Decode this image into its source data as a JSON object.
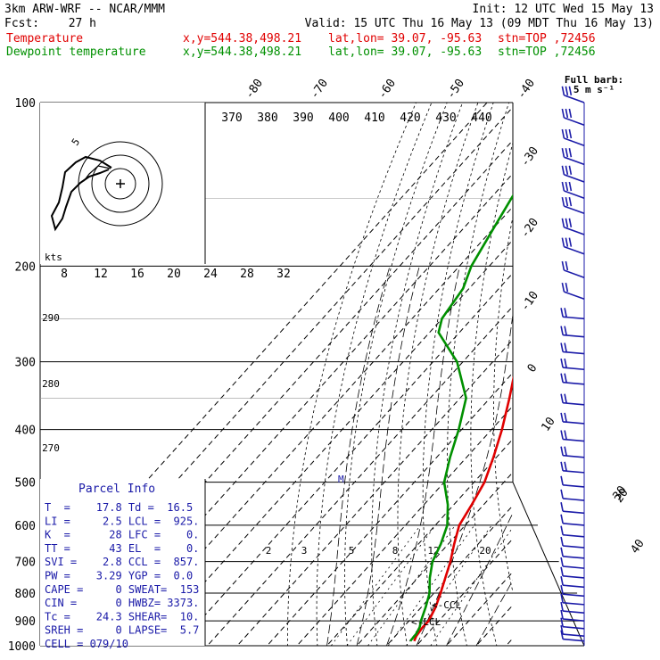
{
  "header": {
    "model": "3km ARW-WRF -- NCAR/MMM",
    "init": "Init: 12 UTC Wed 15 May 13",
    "fcst_label": "Fcst:",
    "fcst_value": "27 h",
    "valid": "Valid: 15 UTC Thu 16 May 13 (09 MDT Thu 16 May 13)"
  },
  "legend": [
    {
      "name": "Temperature",
      "color": "#e00000",
      "xy": "x,y=544.38,498.21",
      "latlon": "lat,lon= 39.07, -95.63",
      "stn": "stn=TOP ,72456"
    },
    {
      "name": "Dewpoint temperature",
      "color": "#009000",
      "xy": "x,y=544.38,498.21",
      "latlon": "lat,lon= 39.07, -95.63",
      "stn": "stn=TOP ,72456"
    }
  ],
  "barb_legend": {
    "line1": "Full barb:",
    "line2": "5 m s⁻¹"
  },
  "hodograph": {
    "units": "kts",
    "ring_label": "5"
  },
  "parcel_info": {
    "title": "Parcel Info",
    "rows": [
      "T  =    17.8 Td =  16.5",
      "LI =     2.5 LCL =  925.",
      "K  =      28 LFC =    0.",
      "TT =      43 EL  =    0.",
      "SVI =    2.8 CCL =  857.",
      "PW =    3.29 YGP =  0.0",
      "CAPE =     0 SWEAT=  153",
      "CIN =      0 HWBZ= 3373.",
      "Tc =    24.3 SHEAR=  10.",
      "SREH =     0 LAPSE=  5.7",
      "CELL = 079/10"
    ]
  },
  "chart_data": {
    "type": "line",
    "subtype": "skew-T log-P",
    "pressure_levels": [
      "100",
      "200",
      "300",
      "400",
      "500",
      "600",
      "700",
      "800",
      "900",
      "1000"
    ],
    "pressure_values": [
      100,
      200,
      300,
      400,
      500,
      600,
      700,
      800,
      900,
      1000
    ],
    "top_temp_labels": [
      "-80",
      "-70",
      "-60",
      "-50",
      "-40"
    ],
    "right_temp_labels": [
      "-30",
      "-20",
      "-10",
      "0",
      "10",
      "20",
      "30",
      "40"
    ],
    "theta_labels_top": [
      "370",
      "380",
      "390",
      "400",
      "410",
      "420",
      "430",
      "440"
    ],
    "theta_labels_mid": [
      "8",
      "12",
      "16",
      "20",
      "24",
      "28",
      "32"
    ],
    "theta_labels_left": [
      "290",
      "280",
      "270"
    ],
    "mixing_ratio_labels": [
      "2",
      "3",
      "5",
      "8",
      "12",
      "20"
    ],
    "annotations": {
      "lcl": "<-LCL",
      "ccl": "<-CCL",
      "m": "M"
    },
    "series": [
      {
        "name": "Temperature",
        "color": "#e00000",
        "points": [
          {
            "p": 980,
            "t": 17.8
          },
          {
            "p": 960,
            "t": 17.0
          },
          {
            "p": 925,
            "t": 16.5
          },
          {
            "p": 900,
            "t": 16.6
          },
          {
            "p": 850,
            "t": 14.8
          },
          {
            "p": 800,
            "t": 12.2
          },
          {
            "p": 750,
            "t": 9.2
          },
          {
            "p": 700,
            "t": 6.0
          },
          {
            "p": 650,
            "t": 2.0
          },
          {
            "p": 600,
            "t": -2.0
          },
          {
            "p": 550,
            "t": -4.0
          },
          {
            "p": 500,
            "t": -6.5
          },
          {
            "p": 450,
            "t": -11.0
          },
          {
            "p": 400,
            "t": -16.5
          },
          {
            "p": 350,
            "t": -23.5
          },
          {
            "p": 300,
            "t": -32.0
          },
          {
            "p": 250,
            "t": -43.0
          },
          {
            "p": 200,
            "t": -54.0
          },
          {
            "p": 180,
            "t": -57.0
          },
          {
            "p": 160,
            "t": -58.0
          },
          {
            "p": 140,
            "t": -60.0
          },
          {
            "p": 125,
            "t": -62.5
          },
          {
            "p": 110,
            "t": -64.0
          },
          {
            "p": 100,
            "t": -65.0
          }
        ]
      },
      {
        "name": "Dewpoint temperature",
        "color": "#009000",
        "points": [
          {
            "p": 980,
            "t": 16.5
          },
          {
            "p": 950,
            "t": 16.3
          },
          {
            "p": 925,
            "t": 15.5
          },
          {
            "p": 900,
            "t": 14.0
          },
          {
            "p": 850,
            "t": 11.5
          },
          {
            "p": 800,
            "t": 8.5
          },
          {
            "p": 750,
            "t": 4.0
          },
          {
            "p": 700,
            "t": 0.0
          },
          {
            "p": 650,
            "t": -2.5
          },
          {
            "p": 600,
            "t": -6.0
          },
          {
            "p": 550,
            "t": -12.0
          },
          {
            "p": 500,
            "t": -20.0
          },
          {
            "p": 450,
            "t": -25.5
          },
          {
            "p": 400,
            "t": -31.0
          },
          {
            "p": 350,
            "t": -38.0
          },
          {
            "p": 300,
            "t": -52.0
          },
          {
            "p": 265,
            "t": -67.0
          },
          {
            "p": 250,
            "t": -70.0
          },
          {
            "p": 220,
            "t": -72.0
          },
          {
            "p": 200,
            "t": -76.0
          },
          {
            "p": 170,
            "t": -80.0
          },
          {
            "p": 150,
            "t": -83.0
          },
          {
            "p": 125,
            "t": -87.0
          },
          {
            "p": 100,
            "t": -88.5
          }
        ]
      }
    ]
  },
  "wind_barbs": {
    "pressures": [
      100,
      110,
      120,
      130,
      140,
      150,
      160,
      175,
      190,
      210,
      230,
      250,
      270,
      290,
      310,
      330,
      360,
      390,
      420,
      450,
      480,
      510,
      540,
      570,
      600,
      630,
      660,
      690,
      720,
      750,
      780,
      810,
      840,
      870,
      900,
      930,
      960,
      980
    ]
  }
}
